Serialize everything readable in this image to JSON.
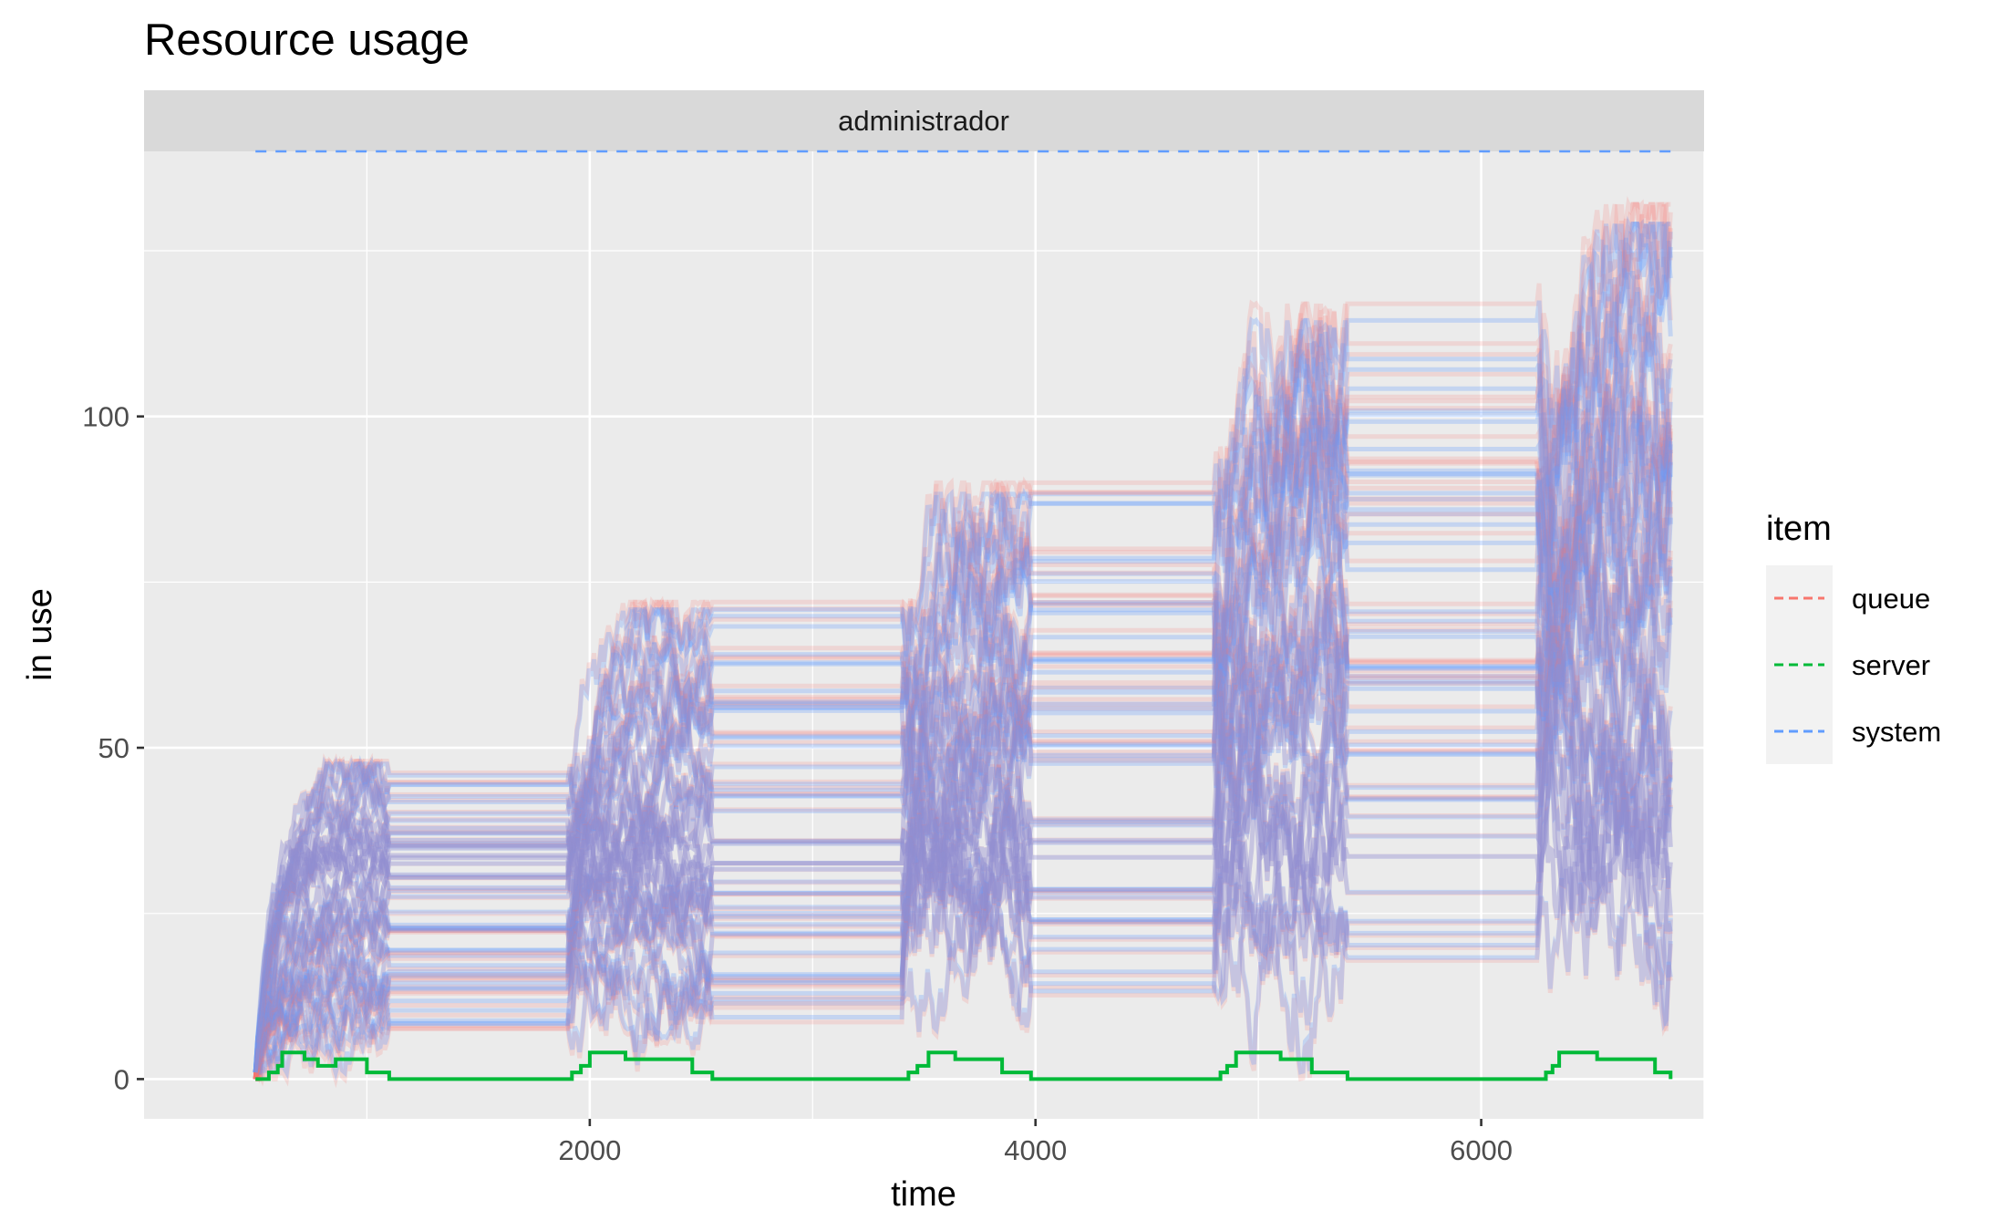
{
  "chart_data": {
    "type": "line",
    "title": "Resource usage",
    "facet": "administrador",
    "xlabel": "time",
    "ylabel": "in use",
    "xlim": [
      0,
      7000
    ],
    "ylim": [
      -6,
      140
    ],
    "x_ticks": [
      2000,
      4000,
      6000
    ],
    "x_tick_labels": [
      "2000",
      "4000",
      "6000"
    ],
    "y_ticks": [
      0,
      50,
      100
    ],
    "y_tick_labels": [
      "0",
      "50",
      "100"
    ],
    "grid": true,
    "legend": {
      "title": "item",
      "position": "right",
      "entries": [
        {
          "name": "queue",
          "color": "#F8766D"
        },
        {
          "name": "server",
          "color": "#00BA38"
        },
        {
          "name": "system",
          "color": "#619CFF"
        }
      ]
    },
    "busy_windows": [
      {
        "start": 500,
        "end": 1100,
        "peak": 48
      },
      {
        "start": 1900,
        "end": 2550,
        "peak": 72
      },
      {
        "start": 3400,
        "end": 3980,
        "peak": 90
      },
      {
        "start": 4800,
        "end": 5400,
        "peak": 117
      },
      {
        "start": 6250,
        "end": 6850,
        "peak": 132
      }
    ],
    "series": [
      {
        "name": "server",
        "color": "#00BA38",
        "x": [
          500,
          560,
          600,
          620,
          720,
          780,
          860,
          960,
          1000,
          1100,
          1900,
          1920,
          1960,
          2000,
          2100,
          2160,
          2260,
          2420,
          2460,
          2550,
          3400,
          3430,
          3470,
          3520,
          3640,
          3660,
          3800,
          3850,
          3980,
          4800,
          4830,
          4860,
          4900,
          5080,
          5100,
          5200,
          5240,
          5400,
          6250,
          6290,
          6320,
          6350,
          6500,
          6520,
          6560,
          6780,
          6850
        ],
        "y": [
          0,
          1,
          2,
          4,
          3,
          2,
          3,
          3,
          1,
          0,
          0,
          1,
          2,
          4,
          4,
          3,
          3,
          3,
          1,
          0,
          0,
          1,
          2,
          4,
          3,
          3,
          3,
          1,
          0,
          0,
          1,
          2,
          4,
          4,
          3,
          3,
          1,
          0,
          0,
          1,
          2,
          4,
          4,
          3,
          3,
          1,
          0
        ]
      },
      {
        "name": "system",
        "color": "#619CFF",
        "x": [
          500,
          6850
        ],
        "y": [
          140,
          140
        ]
      }
    ]
  }
}
